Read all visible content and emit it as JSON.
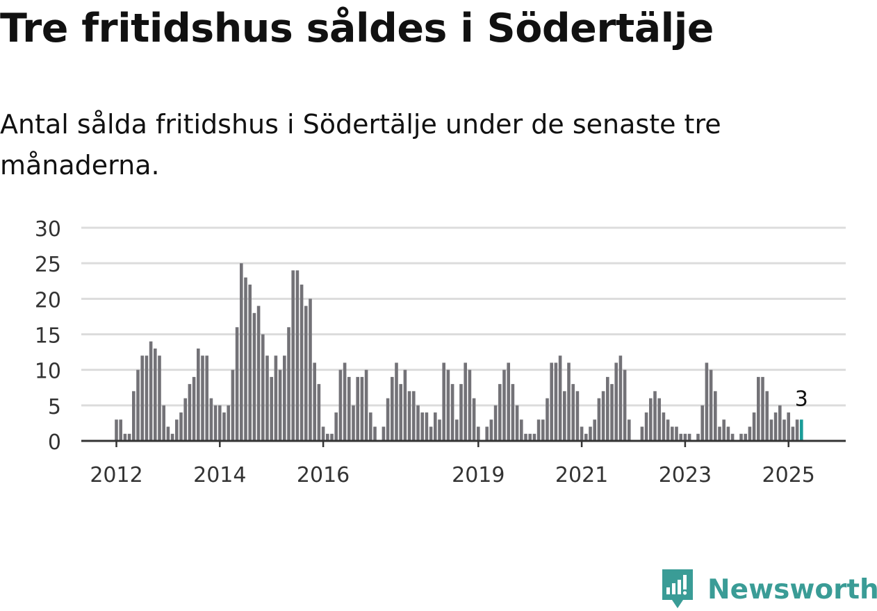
{
  "title": "Tre fritidshus såldes i Södertälje",
  "subtitle": "Antal sålda fritidshus i Södertälje under de senaste tre månaderna.",
  "brand": {
    "name": "Newsworthy",
    "color": "#3a9c96",
    "icon": "newsworthy-logo-icon"
  },
  "colors": {
    "bar": "#737277",
    "highlight": "#1a9c98",
    "grid": "#dcdcdc",
    "axis": "#333333"
  },
  "chart_data": {
    "type": "bar",
    "ylim": [
      0,
      30
    ],
    "yticks": [
      0,
      5,
      10,
      15,
      20,
      25,
      30
    ],
    "grid": true,
    "xticks": [
      {
        "label": "2012",
        "date": "2012-01"
      },
      {
        "label": "2014",
        "date": "2014-01"
      },
      {
        "label": "2016",
        "date": "2016-01"
      },
      {
        "label": "2019",
        "date": "2019-01"
      },
      {
        "label": "2021",
        "date": "2021-01"
      },
      {
        "label": "2023",
        "date": "2023-01"
      },
      {
        "label": "2025",
        "date": "2025-01"
      }
    ],
    "first_month": "2012-01",
    "values": [
      3,
      3,
      1,
      1,
      7,
      10,
      12,
      12,
      14,
      13,
      12,
      5,
      2,
      1,
      3,
      4,
      6,
      8,
      9,
      13,
      12,
      12,
      6,
      5,
      5,
      4,
      5,
      10,
      16,
      25,
      23,
      22,
      18,
      19,
      15,
      12,
      9,
      12,
      10,
      12,
      16,
      24,
      24,
      22,
      19,
      20,
      11,
      8,
      2,
      1,
      1,
      4,
      10,
      11,
      9,
      5,
      9,
      9,
      10,
      4,
      2,
      0,
      2,
      6,
      9,
      11,
      8,
      10,
      7,
      7,
      5,
      4,
      4,
      2,
      4,
      3,
      11,
      10,
      8,
      3,
      8,
      11,
      10,
      6,
      2,
      0,
      2,
      3,
      5,
      8,
      10,
      11,
      8,
      5,
      3,
      1,
      1,
      1,
      3,
      3,
      6,
      11,
      11,
      12,
      7,
      11,
      8,
      7,
      2,
      1,
      2,
      3,
      6,
      7,
      9,
      8,
      11,
      12,
      10,
      3,
      0,
      0,
      2,
      4,
      6,
      7,
      6,
      4,
      3,
      2,
      2,
      1,
      1,
      1,
      0,
      1,
      5,
      11,
      10,
      7,
      2,
      3,
      2,
      1,
      0,
      1,
      1,
      2,
      4,
      9,
      9,
      7,
      3,
      4,
      5,
      3,
      4,
      2,
      3,
      3
    ],
    "annotations": [
      {
        "label": "3",
        "date": "2025-04",
        "value": 3
      }
    ]
  }
}
